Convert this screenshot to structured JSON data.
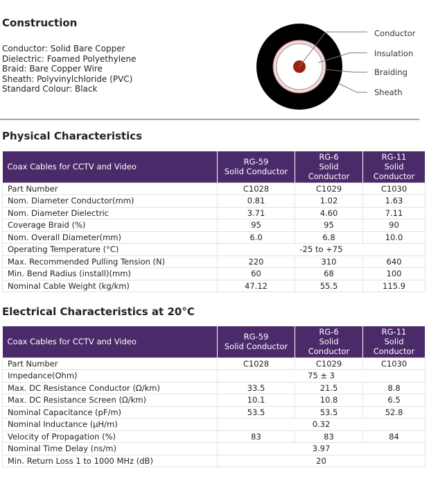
{
  "construction": {
    "title": "Construction",
    "lines": [
      "Conductor: Solid Bare Copper",
      "Dielectric: Foamed Polyethylene",
      "Braid: Bare Copper Wire",
      "Sheath: Polyvinylchloride (PVC)",
      "Standard Colour: Black"
    ],
    "diagram_labels": [
      "Conductor",
      "Insulation",
      "Braiding",
      "Sheath"
    ]
  },
  "physical": {
    "title": "Physical Characteristics",
    "header": [
      "Coax Cables for CCTV and Video",
      [
        "RG-59",
        "Solid Conductor"
      ],
      [
        "RG-6",
        "Solid",
        "Conductor"
      ],
      [
        "RG-11",
        "Solid",
        "Conductor"
      ]
    ],
    "rows": [
      [
        "Part Number",
        "C1028",
        "C1029",
        "C1030"
      ],
      [
        "Nom. Diameter Conductor(mm)",
        "0.81",
        "1.02",
        "1.63"
      ],
      [
        "Nom. Diameter Dielectric",
        "3.71",
        "4.60",
        "7.11"
      ],
      [
        "Coverage Braid (%)",
        "95",
        "95",
        "90"
      ],
      [
        "Nom. Overall Diameter(mm)",
        "6.0",
        "6.8",
        "10.0"
      ],
      [
        "Operating Temperature (°C)",
        "-25 to +75"
      ],
      [
        "Max. Recommended Pulling Tension (N)",
        "220",
        "310",
        "640"
      ],
      [
        "Min. Bend Radius (install)(mm)",
        "60",
        "68",
        "100"
      ],
      [
        "Nominal Cable Weight (kg/km)",
        "47.12",
        "55.5",
        "115.9"
      ]
    ]
  },
  "electrical": {
    "title": "Electrical Characteristics at 20°C",
    "header": [
      "Coax Cables for CCTV and Video",
      [
        "RG-59",
        "Solid Conductor"
      ],
      [
        "RG-6",
        "Solid",
        "Conductor"
      ],
      [
        "RG-11",
        "Solid",
        "Conductor"
      ]
    ],
    "rows": [
      [
        "Part Number",
        "C1028",
        "C1029",
        "C1030"
      ],
      [
        "Impedance(Ohm)",
        "75 ± 3"
      ],
      [
        "Max. DC Resistance Conductor (Ω/km)",
        "33.5",
        "21.5",
        "8.8"
      ],
      [
        "Max. DC Resistance Screen (Ω/km)",
        "10.1",
        "10.8",
        "6.5"
      ],
      [
        "Nominal Capacitance (pF/m)",
        "53.5",
        "53.5",
        "52.8"
      ],
      [
        "Nominal Inductance (µH/m)",
        "0.32"
      ],
      [
        "Velocity of Propagation (%)",
        "83",
        "83",
        "84"
      ],
      [
        "Nominal Time Delay (ns/m)",
        "3.97"
      ],
      [
        "Min. Return Loss 1 to 1000 MHz (dB)",
        "20"
      ]
    ]
  }
}
